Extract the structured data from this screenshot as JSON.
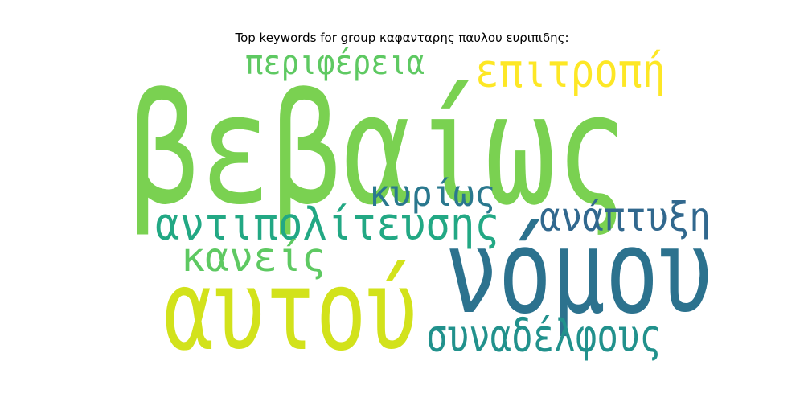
{
  "chart_data": {
    "type": "wordcloud",
    "title": "Top keywords for group καφανταρης παυλου ευριπιδης:",
    "words": [
      {
        "text": "βεβαίως",
        "weight": 1.0,
        "color": "#7ad151"
      },
      {
        "text": "νόμου",
        "weight": 0.78,
        "color": "#2c728e"
      },
      {
        "text": "αυτού",
        "weight": 0.74,
        "color": "#d2e21b"
      },
      {
        "text": "αντιπολίτευσης",
        "weight": 0.34,
        "color": "#22a884"
      },
      {
        "text": "συναδέλφους",
        "weight": 0.31,
        "color": "#21918c"
      },
      {
        "text": "ανάπτυξη",
        "weight": 0.3,
        "color": "#31688e"
      },
      {
        "text": "επιτροπή",
        "weight": 0.3,
        "color": "#fde725"
      },
      {
        "text": "κανείς",
        "weight": 0.29,
        "color": "#5ec962"
      },
      {
        "text": "κυρίως",
        "weight": 0.26,
        "color": "#2a788e"
      },
      {
        "text": "περιφέρεια",
        "weight": 0.25,
        "color": "#5ec962"
      }
    ]
  }
}
